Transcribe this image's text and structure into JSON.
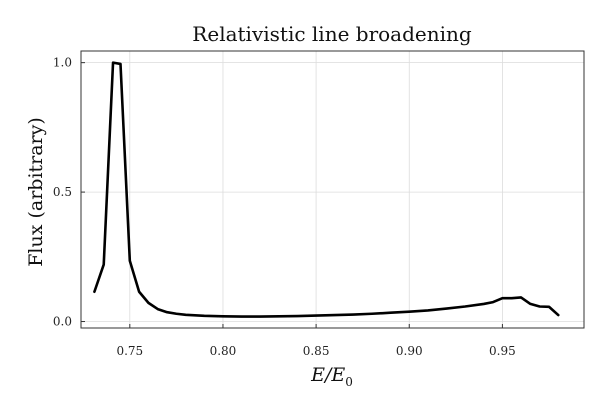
{
  "chart_data": {
    "type": "line",
    "title": "Relativistic line broadening",
    "xlabel": "E/E",
    "xlabel_subscript": "0",
    "ylabel": "Flux (arbitrary)",
    "xlim": [
      0.7238,
      0.9938
    ],
    "ylim": [
      -0.025,
      1.045
    ],
    "x_ticks": [
      0.75,
      0.8,
      0.85,
      0.9,
      0.95
    ],
    "x_tick_labels": [
      "0.75",
      "0.80",
      "0.85",
      "0.90",
      "0.95"
    ],
    "y_ticks": [
      0.0,
      0.5,
      1.0
    ],
    "y_tick_labels": [
      "0.0",
      "0.5",
      "1.0"
    ],
    "grid": true,
    "series": [
      {
        "x": [
          0.731,
          0.736,
          0.741,
          0.745,
          0.75,
          0.755,
          0.76,
          0.765,
          0.77,
          0.775,
          0.78,
          0.79,
          0.8,
          0.81,
          0.82,
          0.83,
          0.84,
          0.85,
          0.86,
          0.87,
          0.88,
          0.89,
          0.9,
          0.91,
          0.92,
          0.93,
          0.94,
          0.945,
          0.95,
          0.955,
          0.96,
          0.965,
          0.97,
          0.975,
          0.98
        ],
        "y": [
          0.115,
          0.22,
          1.0,
          0.995,
          0.235,
          0.115,
          0.072,
          0.048,
          0.036,
          0.03,
          0.026,
          0.022,
          0.02,
          0.019,
          0.019,
          0.02,
          0.021,
          0.023,
          0.025,
          0.027,
          0.03,
          0.034,
          0.038,
          0.043,
          0.05,
          0.058,
          0.068,
          0.075,
          0.09,
          0.09,
          0.093,
          0.068,
          0.058,
          0.057,
          0.025
        ]
      }
    ]
  }
}
